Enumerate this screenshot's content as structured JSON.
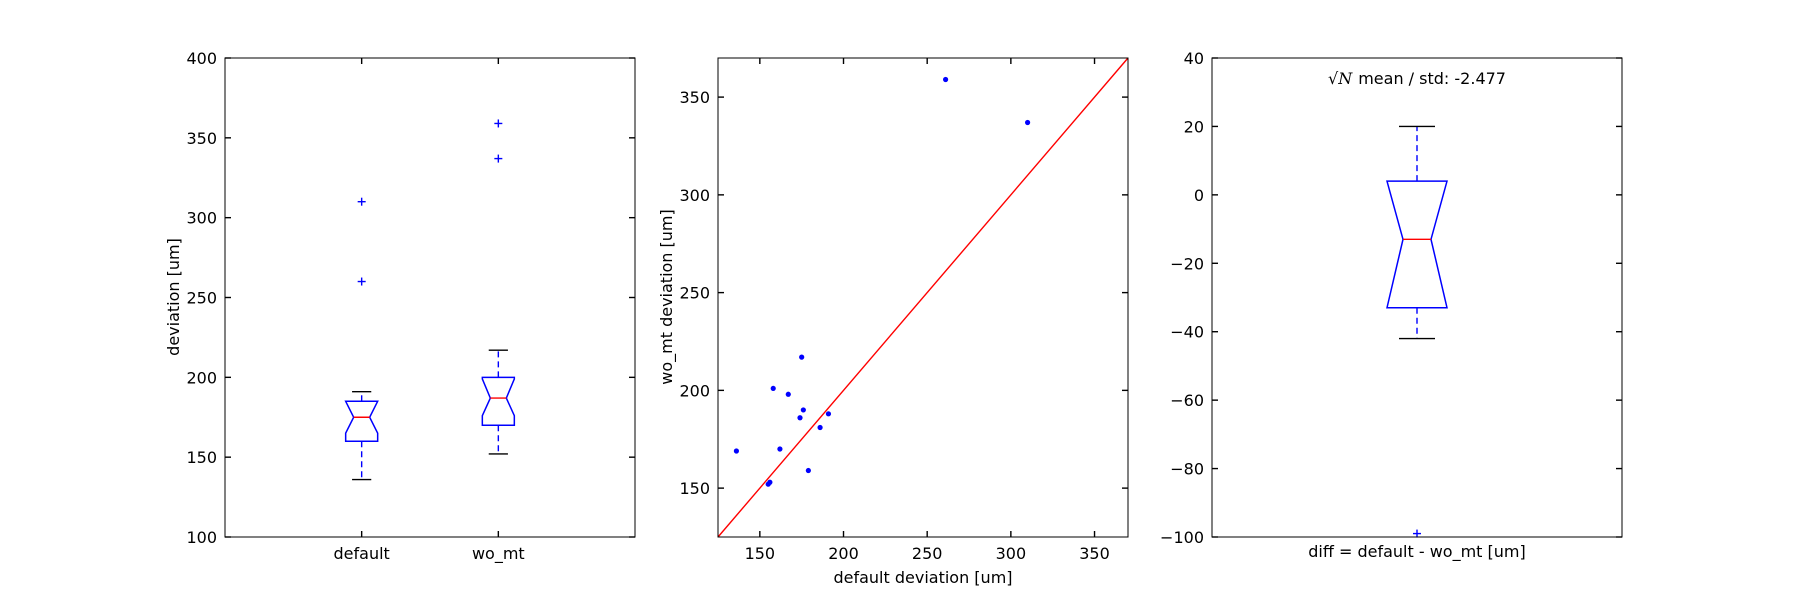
{
  "chart_data": [
    {
      "type": "boxplot",
      "ylabel": "deviation [um]",
      "ylim": [
        100,
        400
      ],
      "yticks": [
        100,
        150,
        200,
        250,
        300,
        350,
        400
      ],
      "categories": [
        "default",
        "wo_mt"
      ],
      "boxes": [
        {
          "name": "default",
          "whisker_low": 136,
          "q1": 160,
          "median": 175,
          "q3": 185,
          "whisker_high": 191,
          "notch_low": 165,
          "notch_high": 185,
          "outliers": [
            260,
            310
          ]
        },
        {
          "name": "wo_mt",
          "whisker_low": 152,
          "q1": 170,
          "median": 187,
          "q3": 200,
          "whisker_high": 217,
          "notch_low": 176,
          "notch_high": 199,
          "outliers": [
            337,
            359
          ]
        }
      ],
      "colors": {
        "box": "#0000ff",
        "median": "#ff0000",
        "cap": "#000000"
      }
    },
    {
      "type": "scatter",
      "xlabel": "default deviation [um]",
      "ylabel": "wo_mt  deviation [um]",
      "xlim": [
        125,
        370
      ],
      "ylim": [
        125,
        370
      ],
      "xticks": [
        150,
        200,
        250,
        300,
        350
      ],
      "yticks": [
        150,
        200,
        250,
        300,
        350
      ],
      "points": [
        {
          "x": 136,
          "y": 169
        },
        {
          "x": 155,
          "y": 152
        },
        {
          "x": 156,
          "y": 153
        },
        {
          "x": 158,
          "y": 201
        },
        {
          "x": 162,
          "y": 170
        },
        {
          "x": 167,
          "y": 198
        },
        {
          "x": 174,
          "y": 186
        },
        {
          "x": 175,
          "y": 217
        },
        {
          "x": 176,
          "y": 190
        },
        {
          "x": 179,
          "y": 159
        },
        {
          "x": 186,
          "y": 181
        },
        {
          "x": 191,
          "y": 188
        },
        {
          "x": 261,
          "y": 359
        },
        {
          "x": 310,
          "y": 337
        }
      ],
      "reference_line": {
        "from": [
          125,
          125
        ],
        "to": [
          370,
          370
        ]
      },
      "colors": {
        "points": "#0000ff",
        "line": "#ff0000"
      }
    },
    {
      "type": "boxplot",
      "title_prefix": "√N",
      "title": "mean / std: -2.477",
      "xlabel": "diff = default - wo_mt [um]",
      "ylim": [
        -100,
        40
      ],
      "yticks": [
        -100,
        -80,
        -60,
        -40,
        -20,
        0,
        20,
        40
      ],
      "boxes": [
        {
          "name": "diff",
          "whisker_low": -42,
          "q1": -33,
          "median": -13,
          "q3": 4,
          "whisker_high": 20,
          "notch_low": -33,
          "notch_high": 4,
          "outliers": [
            -99
          ]
        }
      ],
      "colors": {
        "box": "#0000ff",
        "median": "#ff0000",
        "cap": "#000000"
      }
    }
  ]
}
